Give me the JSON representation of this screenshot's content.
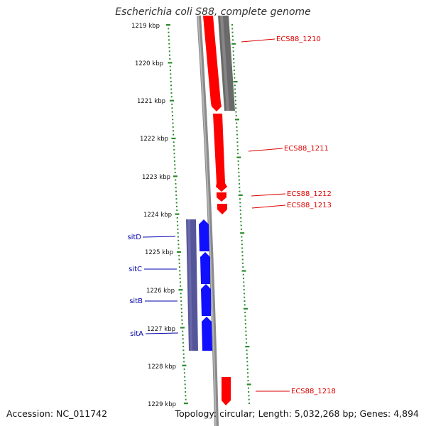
{
  "title": "Escherichia coli S88, complete genome",
  "footer": {
    "accession": "Accession: NC_011742",
    "stats": "Topology: circular; Length: 5,032,268 bp; Genes: 4,894"
  },
  "colors": {
    "forward_gene": "#ff0000",
    "reverse_gene": "#1010ff",
    "operon_fill": "#55559a",
    "pseudo_gray": "#6a6a6a",
    "backbone": "#8a8a8a",
    "tick": "#2a8a2a",
    "label_red": "#dd0000",
    "label_blue": "#0000aa"
  },
  "scale_labels": [
    "1219 kbp",
    "1220 kbp",
    "1221 kbp",
    "1222 kbp",
    "1223 kbp",
    "1224 kbp",
    "1225 kbp",
    "1226 kbp",
    "1227 kbp",
    "1228 kbp",
    "1229 kbp"
  ],
  "gene_labels": {
    "red": [
      "ECS88_1210",
      "ECS88_1211",
      "ECS88_1212",
      "ECS88_1213",
      "ECS88_1218"
    ],
    "blue": [
      "sitD",
      "sitC",
      "sitB",
      "sitA"
    ]
  }
}
